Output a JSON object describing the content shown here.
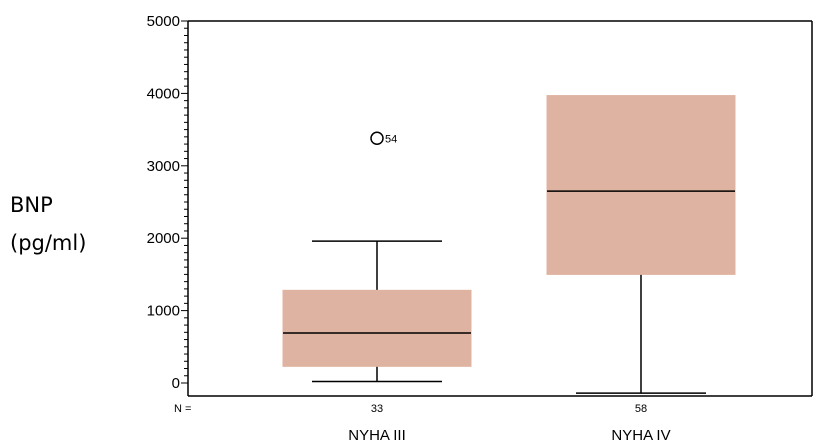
{
  "chart_data": {
    "type": "boxplot",
    "ylabel_line1": "BNP",
    "ylabel_line2": "(pg/ml)",
    "ylim": [
      0,
      5000
    ],
    "y_ticks": [
      0,
      1000,
      2000,
      3000,
      4000,
      5000
    ],
    "n_prefix": "N =",
    "box_color": "#dfb3a1",
    "groups": [
      {
        "category": "NYHA III",
        "n": "33",
        "whisker_low": 20,
        "q1": 230,
        "median": 690,
        "q3": 1280,
        "whisker_high": 1960,
        "outliers": [
          {
            "value": 3380,
            "label": "54"
          }
        ]
      },
      {
        "category": "NYHA IV",
        "n": "58",
        "whisker_low": -140,
        "q1": 1500,
        "median": 2650,
        "q3": 3970,
        "whisker_high": 3970,
        "outliers": []
      }
    ]
  }
}
